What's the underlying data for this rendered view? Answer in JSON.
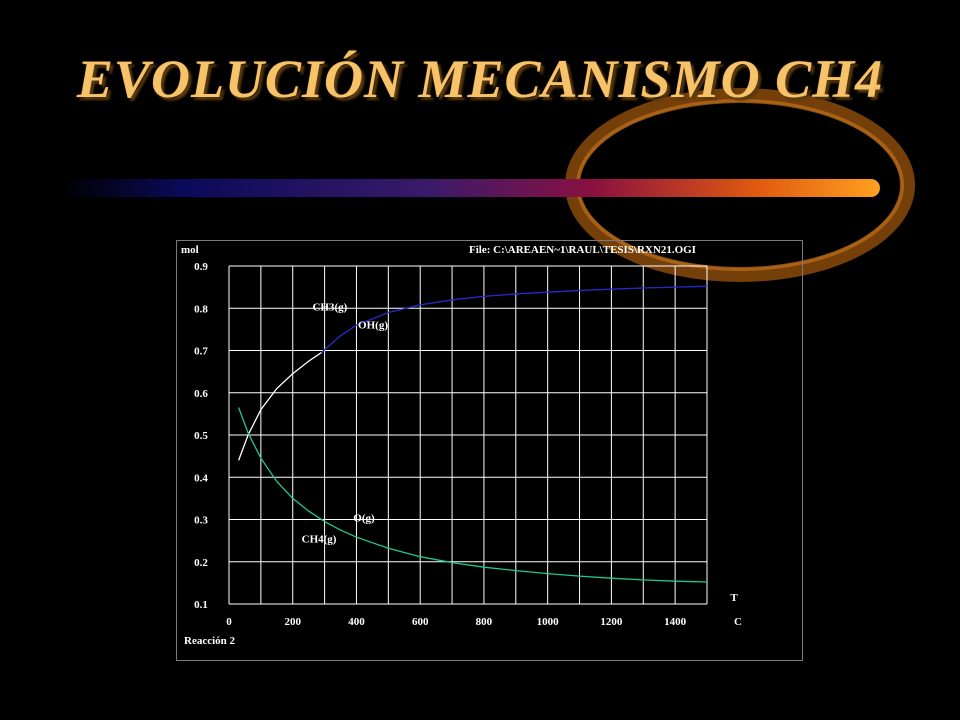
{
  "slide": {
    "title": "EVOLUCIÓN MECANISMO CH4"
  },
  "colors": {
    "title": "#f6c36a",
    "ch3": "#2a2acc",
    "oh": "#ffffff",
    "ch4": "#20c890",
    "og": "#ffffff",
    "grid": "#ffffff"
  },
  "chart_data": {
    "type": "line",
    "title": "",
    "file_label": "File: C:\\AREAEN~1\\RAUL\\TESIS\\RXN21.OGI",
    "ylabel": "mol",
    "xlabel": "C",
    "x_axis_variable": "T",
    "footer": "Reacción 2",
    "xlim": [
      0,
      1500
    ],
    "ylim": [
      0.1,
      0.9
    ],
    "xticks": [
      "0",
      "200",
      "400",
      "600",
      "800",
      "1000",
      "1200",
      "1400"
    ],
    "yticks": [
      "0.9",
      "0.8",
      "0.7",
      "0.6",
      "0.5",
      "0.4",
      "0.3",
      "0.2",
      "0.1"
    ],
    "grid": true,
    "series": [
      {
        "name": "CH3(g)",
        "color": "#2a2acc",
        "x": [
          290,
          350,
          400,
          500,
          600,
          700,
          800,
          900,
          1000,
          1100,
          1200,
          1300,
          1400,
          1500
        ],
        "y": [
          0.695,
          0.735,
          0.76,
          0.79,
          0.808,
          0.82,
          0.828,
          0.834,
          0.838,
          0.842,
          0.845,
          0.848,
          0.85,
          0.852
        ]
      },
      {
        "name": "OH(g)",
        "color": "#ffffff",
        "x": [
          30,
          60,
          100,
          150,
          200,
          250,
          290
        ],
        "y": [
          0.44,
          0.5,
          0.56,
          0.61,
          0.645,
          0.675,
          0.695
        ]
      },
      {
        "name": "CH4(g)",
        "color": "#20c890",
        "x": [
          30,
          60,
          100,
          150,
          200,
          250,
          300,
          350,
          400,
          500,
          600,
          700,
          800,
          900,
          1000,
          1100,
          1200,
          1300,
          1400,
          1500
        ],
        "y": [
          0.565,
          0.505,
          0.445,
          0.39,
          0.35,
          0.32,
          0.295,
          0.275,
          0.258,
          0.232,
          0.212,
          0.198,
          0.187,
          0.179,
          0.172,
          0.166,
          0.161,
          0.157,
          0.154,
          0.152
        ]
      },
      {
        "name": "O(g)",
        "color": "#ffffff",
        "x": [],
        "y": []
      }
    ],
    "annotations": [
      {
        "text": "CH3(g)",
        "x": 262,
        "y": 0.795
      },
      {
        "text": "OH(g)",
        "x": 405,
        "y": 0.752
      },
      {
        "text": "O(g)",
        "x": 390,
        "y": 0.295
      },
      {
        "text": "CH4(g)",
        "x": 228,
        "y": 0.245
      }
    ]
  }
}
